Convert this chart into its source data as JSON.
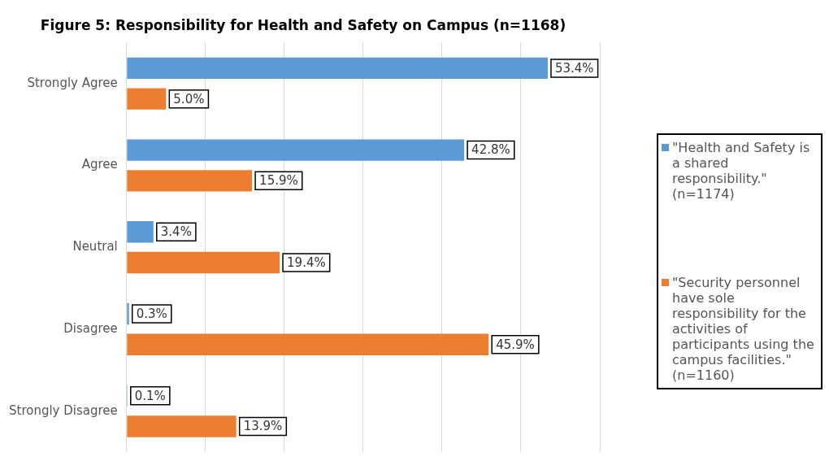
{
  "chart_data": {
    "type": "bar",
    "orientation": "horizontal",
    "title": "Figure 5: Responsibility for Health and Safety on Campus (n=1168)",
    "categories": [
      "Strongly Agree",
      "Agree",
      "Neutral",
      "Disagree",
      "Strongly Disagree"
    ],
    "series": [
      {
        "name": "\"Health and Safety is a shared responsibility.\" (n=1174)",
        "color": "#5b9bd5",
        "values": [
          53.4,
          42.8,
          3.4,
          0.3,
          0.1
        ],
        "value_labels": [
          "53.4%",
          "42.8%",
          "3.4%",
          "0.3%",
          "0.1%"
        ]
      },
      {
        "name": "\"Security personnel have sole responsibility for the activities of participants using the campus facilities.\" (n=1160)",
        "color": "#ed7d31",
        "values": [
          5.0,
          15.9,
          19.4,
          45.9,
          13.9
        ],
        "value_labels": [
          "5.0%",
          "15.9%",
          "19.4%",
          "45.9%",
          "13.9%"
        ]
      }
    ],
    "xlim": [
      0,
      60
    ],
    "xticks": [
      {
        "value": 0,
        "label": null
      },
      {
        "value": 10,
        "label": null
      },
      {
        "value": 20,
        "label": null
      },
      {
        "value": 30,
        "label": null
      },
      {
        "value": 40,
        "label": null
      },
      {
        "value": 50,
        "label": null
      },
      {
        "value": 60,
        "label": null
      }
    ],
    "tick_labels": "y",
    "grid": "x",
    "legend": "right"
  }
}
